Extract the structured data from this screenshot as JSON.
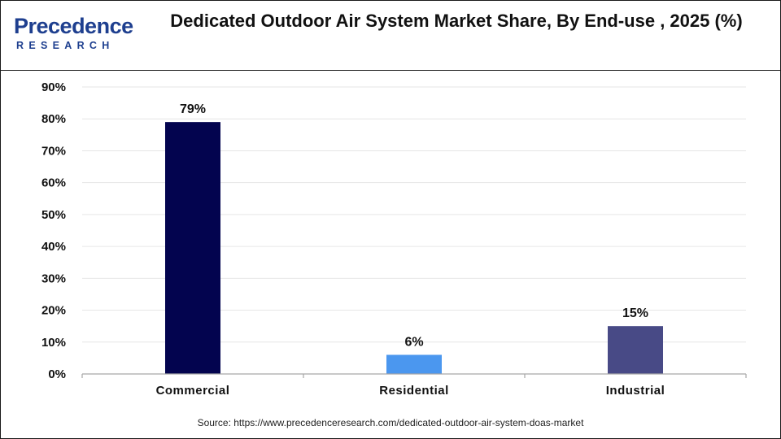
{
  "brand": {
    "name": "Precedence",
    "sub": "RESEARCH"
  },
  "header": {
    "title": "Dedicated Outdoor Air System Market Share, By End-use , 2025 (%)"
  },
  "source": "Source: https://www.precedenceresearch.com/dedicated-outdoor-air-system-doas-market",
  "chart_data": {
    "type": "bar",
    "title": "Dedicated Outdoor Air System Market Share, By End-use , 2025 (%)",
    "categories": [
      "Commercial",
      "Residential",
      "Industrial"
    ],
    "values": [
      79,
      6,
      15
    ],
    "data_labels": [
      "79%",
      "6%",
      "15%"
    ],
    "colors": [
      "#03044f",
      "#4b97ef",
      "#484a86"
    ],
    "ylim": [
      0,
      90
    ],
    "yticks": [
      0,
      10,
      20,
      30,
      40,
      50,
      60,
      70,
      80,
      90
    ],
    "ytick_labels": [
      "0%",
      "10%",
      "20%",
      "30%",
      "40%",
      "50%",
      "60%",
      "70%",
      "80%",
      "90%"
    ],
    "xlabel": "",
    "ylabel": "",
    "grid": true,
    "gridline_color": "#e6e6e6",
    "axis_color": "#a6a6a6"
  }
}
